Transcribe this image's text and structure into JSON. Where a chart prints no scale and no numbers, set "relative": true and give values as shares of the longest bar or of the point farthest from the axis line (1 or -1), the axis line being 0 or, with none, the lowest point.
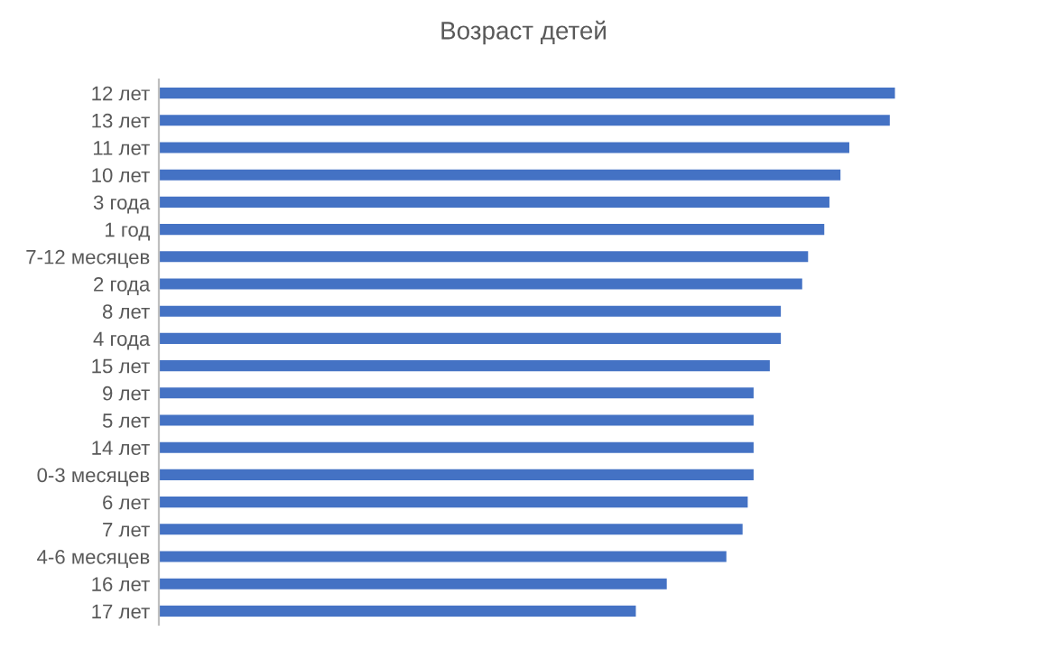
{
  "chart_data": {
    "type": "bar",
    "orientation": "horizontal",
    "relative": true,
    "title": "Возраст детей",
    "categories": [
      "12 лет",
      "13 лет",
      "11 лет",
      "10 лет",
      "3 года",
      "1 год",
      "7-12 месяцев",
      "2 года",
      "8 лет",
      "4 года",
      "15 лет",
      "9 лет",
      "5 лет",
      "14 лет",
      "0-3 месяцев",
      "6 лет",
      "7 лет",
      "4-6 месяцев",
      "16 лет",
      "17 лет"
    ],
    "values": [
      1,
      0.993,
      0.938,
      0.926,
      0.911,
      0.904,
      0.882,
      0.874,
      0.845,
      0.845,
      0.83,
      0.808,
      0.808,
      0.808,
      0.808,
      0.8,
      0.793,
      0.771,
      0.69,
      0.648
    ],
    "color": "#4472c4",
    "grid": false,
    "legend": false
  }
}
